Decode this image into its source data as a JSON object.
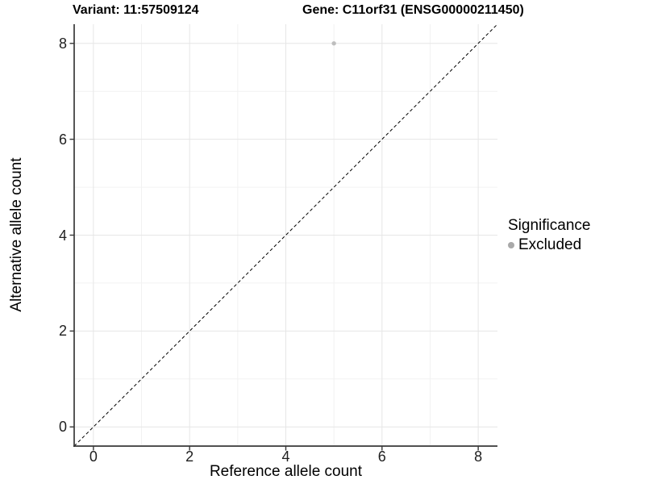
{
  "chart_data": {
    "type": "scatter",
    "title_left": "Variant: 11:57509124",
    "title_right": "Gene: C11orf31 (ENSG00000211450)",
    "xlabel": "Reference allele count",
    "ylabel": "Alternative allele count",
    "xlim": [
      -0.4,
      8.4
    ],
    "ylim": [
      -0.4,
      8.4
    ],
    "xticks": [
      0,
      2,
      4,
      6,
      8
    ],
    "yticks": [
      0,
      2,
      4,
      6,
      8
    ],
    "xminor": [
      1,
      3,
      5,
      7
    ],
    "yminor": [
      1,
      3,
      5,
      7
    ],
    "grid": "major+minor",
    "identity_line": {
      "from": [
        -0.4,
        -0.4
      ],
      "to": [
        8.4,
        8.4
      ],
      "style": "dashed",
      "color": "#000000"
    },
    "series": [
      {
        "name": "Excluded",
        "color": "#bebebe",
        "point_radius": 2.7,
        "points": [
          {
            "x": 5,
            "y": 8
          }
        ]
      }
    ],
    "legend": {
      "title": "Significance",
      "position": "right",
      "items": [
        {
          "label": "Excluded",
          "color": "#a9a9a9",
          "marker": "circle"
        }
      ]
    }
  },
  "colors": {
    "background": "#ffffff",
    "grid_major": "#e6e6e6",
    "grid_minor": "#f2f2f2",
    "axis_line": "#383838",
    "tick_mark": "#383838",
    "title_text": "#000000",
    "tick_text": "#1f1f1f"
  }
}
